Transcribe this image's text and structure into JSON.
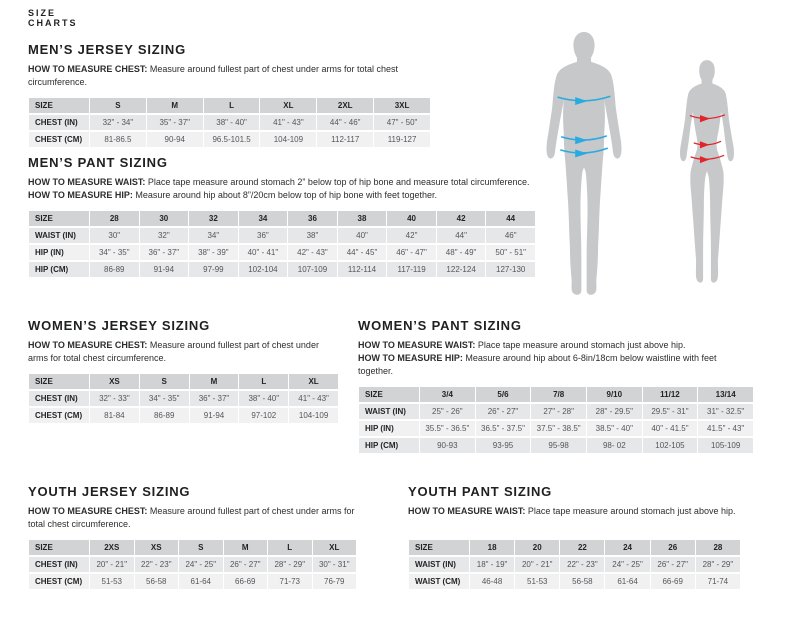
{
  "page": {
    "kicker_line1": "SIZE",
    "kicker_line2": "CHARTS"
  },
  "colors": {
    "accent_blue": "#29abe2",
    "accent_red": "#e1232b",
    "silhouette_gray": "#c7c8ca",
    "table_header_bg": "#d2d3d4",
    "table_row_dark_bg": "#e6e7e8",
    "table_row_light_bg": "#f1f1f2"
  },
  "mens_jersey": {
    "heading": "MEN’S JERSEY SIZING",
    "howto": [
      {
        "label": "HOW TO MEASURE CHEST:",
        "text": "Measure around fullest part of chest under arms for total chest circumference."
      }
    ],
    "table": {
      "header_label": "SIZE",
      "headers": [
        "S",
        "M",
        "L",
        "XL",
        "2XL",
        "3XL"
      ],
      "rows": [
        {
          "label": "CHEST (IN)",
          "values": [
            "32\" - 34\"",
            "35\" - 37\"",
            "38\" - 40\"",
            "41\" - 43\"",
            "44\" - 46\"",
            "47\" - 50\""
          ]
        },
        {
          "label": "CHEST (CM)",
          "values": [
            "81-86.5",
            "90-94",
            "96.5-101.5",
            "104-109",
            "112-117",
            "119-127"
          ]
        }
      ]
    }
  },
  "mens_pant": {
    "heading": "MEN’S PANT SIZING",
    "howto": [
      {
        "label": "HOW TO MEASURE WAIST:",
        "text": "Place tape measure around stomach 2” below top of hip bone and measure total circumference."
      },
      {
        "label": "HOW TO MEASURE HIP:",
        "text": "Measure around hip about 8”/20cm below top of hip bone with feet together."
      }
    ],
    "table": {
      "header_label": "SIZE",
      "headers": [
        "28",
        "30",
        "32",
        "34",
        "36",
        "38",
        "40",
        "42",
        "44"
      ],
      "rows": [
        {
          "label": "WAIST (IN)",
          "values": [
            "30\"",
            "32\"",
            "34\"",
            "36\"",
            "38\"",
            "40\"",
            "42\"",
            "44\"",
            "46\""
          ]
        },
        {
          "label": "HIP (IN)",
          "values": [
            "34\" - 35\"",
            "36\" - 37\"",
            "38\" - 39\"",
            "40\" - 41\"",
            "42\" - 43\"",
            "44\" - 45\"",
            "46\" - 47\"",
            "48\" - 49\"",
            "50\" - 51\""
          ]
        },
        {
          "label": "HIP (CM)",
          "values": [
            "86-89",
            "91-94",
            "97-99",
            "102-104",
            "107-109",
            "112-114",
            "117-119",
            "122-124",
            "127-130"
          ]
        }
      ]
    }
  },
  "womens_jersey": {
    "heading": "WOMEN’S JERSEY SIZING",
    "howto": [
      {
        "label": "HOW TO MEASURE CHEST:",
        "text": "Measure around fullest part of chest under arms for total chest circumference."
      }
    ],
    "table": {
      "header_label": "SIZE",
      "headers": [
        "XS",
        "S",
        "M",
        "L",
        "XL"
      ],
      "rows": [
        {
          "label": "CHEST (IN)",
          "values": [
            "32\" - 33\"",
            "34\" - 35\"",
            "36\" - 37\"",
            "38\" - 40\"",
            "41\" - 43\""
          ]
        },
        {
          "label": "CHEST (CM)",
          "values": [
            "81-84",
            "86-89",
            "91-94",
            "97-102",
            "104-109"
          ]
        }
      ]
    }
  },
  "womens_pant": {
    "heading": "WOMEN’S PANT SIZING",
    "howto": [
      {
        "label": "HOW TO MEASURE WAIST:",
        "text": "Place tape measure around stomach just above hip."
      },
      {
        "label": "HOW TO MEASURE HIP:",
        "text": "Measure around hip about 6-8in/18cm below waistline with feet together."
      }
    ],
    "table": {
      "header_label": "SIZE",
      "headers": [
        "3/4",
        "5/6",
        "7/8",
        "9/10",
        "11/12",
        "13/14"
      ],
      "rows": [
        {
          "label": "WAIST (IN)",
          "values": [
            "25\" - 26\"",
            "26\" - 27\"",
            "27\" - 28\"",
            "28\" - 29.5\"",
            "29.5\" - 31\"",
            "31\" - 32.5\""
          ]
        },
        {
          "label": "HIP (IN)",
          "values": [
            "35.5\" - 36.5\"",
            "36.5\" - 37.5\"",
            "37.5\" - 38.5\"",
            "38.5\" - 40\"",
            "40\" - 41.5\"",
            "41.5\" - 43\""
          ]
        },
        {
          "label": "HIP (CM)",
          "values": [
            "90-93",
            "93-95",
            "95-98",
            "98- 02",
            "102-105",
            "105-109"
          ]
        }
      ]
    }
  },
  "youth_jersey": {
    "heading": "YOUTH JERSEY SIZING",
    "howto": [
      {
        "label": "HOW TO MEASURE CHEST:",
        "text": "Measure around fullest part of chest under arms for total chest circumference."
      }
    ],
    "table": {
      "header_label": "SIZE",
      "headers": [
        "2XS",
        "XS",
        "S",
        "M",
        "L",
        "XL"
      ],
      "rows": [
        {
          "label": "CHEST (IN)",
          "values": [
            "20\" - 21\"",
            "22\" - 23\"",
            "24\" - 25\"",
            "26\" - 27\"",
            "28\" - 29\"",
            "30\" - 31\""
          ]
        },
        {
          "label": "CHEST (CM)",
          "values": [
            "51-53",
            "56-58",
            "61-64",
            "66-69",
            "71-73",
            "76-79"
          ]
        }
      ]
    }
  },
  "youth_pant": {
    "heading": "YOUTH PANT SIZING",
    "howto": [
      {
        "label": "HOW TO MEASURE WAIST:",
        "text": "Place tape measure around stomach just above hip."
      }
    ],
    "table": {
      "header_label": "SIZE",
      "headers": [
        "18",
        "20",
        "22",
        "24",
        "26",
        "28"
      ],
      "rows": [
        {
          "label": "WAIST (IN)",
          "values": [
            "18\" - 19\"",
            "20\" - 21\"",
            "22\" - 23\"",
            "24\" - 25\"",
            "26\" - 27\"",
            "28\" - 29\""
          ]
        },
        {
          "label": "WAIST (CM)",
          "values": [
            "46-48",
            "51-53",
            "56-58",
            "61-64",
            "66-69",
            "71-74"
          ]
        }
      ]
    }
  }
}
